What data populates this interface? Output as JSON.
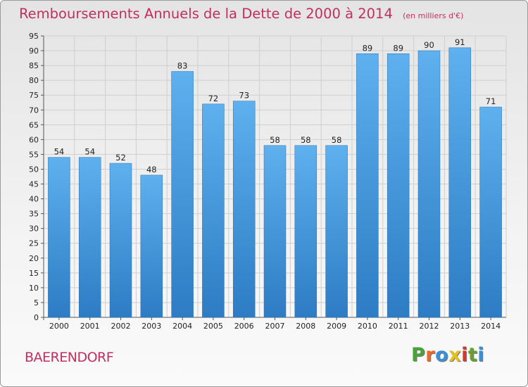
{
  "chart_data": {
    "type": "bar",
    "title": "Remboursements Annuels de la Dette de 2000 à 2014",
    "subtitle": "(en milliers d'€)",
    "categories": [
      "2000",
      "2001",
      "2002",
      "2003",
      "2004",
      "2005",
      "2006",
      "2007",
      "2008",
      "2009",
      "2010",
      "2011",
      "2012",
      "2013",
      "2014"
    ],
    "values": [
      54,
      54,
      52,
      48,
      83,
      72,
      73,
      58,
      58,
      58,
      89,
      89,
      90,
      91,
      71
    ],
    "ylim": [
      0,
      95
    ],
    "yticks": [
      0,
      5,
      10,
      15,
      20,
      25,
      30,
      35,
      40,
      45,
      50,
      55,
      60,
      65,
      70,
      75,
      80,
      85,
      90,
      95
    ],
    "xlabel": "",
    "ylabel": "",
    "grid": true,
    "bar_color": "#3f94d9"
  },
  "footer": {
    "city": "BAERENDORF",
    "logo_letters": [
      "P",
      "r",
      "o",
      "x",
      "i",
      "t",
      "i"
    ],
    "logo_colors": [
      "#4aa33a",
      "#e8692b",
      "#3a8fd6",
      "#e2c120",
      "#d8362f",
      "#6a9f2e",
      "#3a8fd6"
    ]
  }
}
